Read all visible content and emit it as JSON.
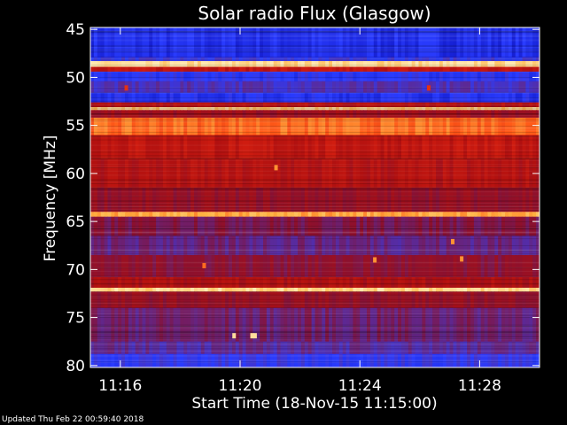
{
  "chart_data": {
    "type": "heatmap",
    "title": "Solar radio Flux (Glasgow)",
    "ylabel": "Frequency [MHz]",
    "xlabel": "Start Time (18-Nov-15 11:15:00)",
    "y_tick_labels": [
      "45",
      "50",
      "55",
      "60",
      "65",
      "70",
      "75",
      "80"
    ],
    "y_tick_values": [
      45,
      50,
      55,
      60,
      65,
      70,
      75,
      80
    ],
    "ylim": [
      44.8,
      80.2
    ],
    "x_tick_labels": [
      "11:16",
      "11:20",
      "11:24",
      "11:28"
    ],
    "x_tick_values_min": [
      1,
      5,
      9,
      13
    ],
    "xlim_min": [
      0,
      15
    ],
    "colormap": [
      "#000040",
      "#1018c8",
      "#2a3cff",
      "#5a2a9a",
      "#8a1030",
      "#b01010",
      "#d82010",
      "#ff5a18",
      "#ffb040",
      "#ffe8b0"
    ],
    "frequency_bands": [
      {
        "f0": 44.8,
        "f1": 47.9,
        "level": 0.18
      },
      {
        "f0": 47.9,
        "f1": 48.3,
        "level": 0.25
      },
      {
        "f0": 48.3,
        "f1": 48.9,
        "level": 0.97
      },
      {
        "f0": 48.9,
        "f1": 49.4,
        "level": 0.6
      },
      {
        "f0": 49.4,
        "f1": 50.4,
        "level": 0.22
      },
      {
        "f0": 50.4,
        "f1": 51.6,
        "level": 0.3
      },
      {
        "f0": 51.6,
        "f1": 52.6,
        "level": 0.2
      },
      {
        "f0": 52.6,
        "f1": 53.1,
        "level": 0.55
      },
      {
        "f0": 53.1,
        "f1": 53.4,
        "level": 0.95
      },
      {
        "f0": 53.4,
        "f1": 54.2,
        "level": 0.5
      },
      {
        "f0": 54.2,
        "f1": 56.0,
        "level": 0.8
      },
      {
        "f0": 56.0,
        "f1": 58.5,
        "level": 0.6
      },
      {
        "f0": 58.5,
        "f1": 61.5,
        "level": 0.56
      },
      {
        "f0": 61.5,
        "f1": 64.0,
        "level": 0.48
      },
      {
        "f0": 64.0,
        "f1": 64.5,
        "level": 0.88
      },
      {
        "f0": 64.5,
        "f1": 66.5,
        "level": 0.42
      },
      {
        "f0": 66.5,
        "f1": 68.5,
        "level": 0.36
      },
      {
        "f0": 68.5,
        "f1": 70.8,
        "level": 0.45
      },
      {
        "f0": 70.8,
        "f1": 71.9,
        "level": 0.55
      },
      {
        "f0": 71.9,
        "f1": 72.3,
        "level": 0.96
      },
      {
        "f0": 72.3,
        "f1": 74.0,
        "level": 0.48
      },
      {
        "f0": 74.0,
        "f1": 77.5,
        "level": 0.38
      },
      {
        "f0": 77.5,
        "f1": 78.8,
        "level": 0.33
      },
      {
        "f0": 78.8,
        "f1": 80.2,
        "level": 0.24
      }
    ],
    "bursts": [
      {
        "t_min": 6.2,
        "f_mhz": 59.4,
        "level": 0.85
      },
      {
        "t_min": 4.8,
        "f_mhz": 76.9,
        "level": 0.98
      },
      {
        "t_min": 5.4,
        "f_mhz": 76.9,
        "level": 0.98
      },
      {
        "t_min": 5.5,
        "f_mhz": 76.9,
        "level": 0.98
      },
      {
        "t_min": 1.2,
        "f_mhz": 51.1,
        "level": 0.7
      },
      {
        "t_min": 11.3,
        "f_mhz": 51.1,
        "level": 0.7
      },
      {
        "t_min": 12.1,
        "f_mhz": 67.1,
        "level": 0.85
      },
      {
        "t_min": 12.4,
        "f_mhz": 68.9,
        "level": 0.85
      },
      {
        "t_min": 9.5,
        "f_mhz": 69.0,
        "level": 0.85
      },
      {
        "t_min": 3.8,
        "f_mhz": 69.6,
        "level": 0.8
      }
    ]
  },
  "footer": {
    "updated_text": "Updated Thu Feb 22 00:59:40 2018"
  }
}
